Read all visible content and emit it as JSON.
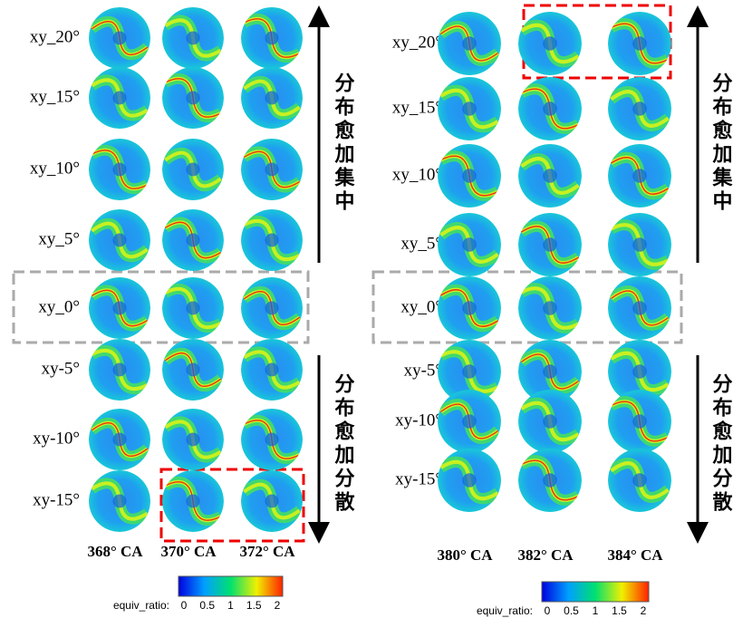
{
  "left_panel": {
    "rows": [
      "xy_20°",
      "xy_15°",
      "xy_10°",
      "xy_5°",
      "xy_0°",
      "xy-5°",
      "xy-10°",
      "xy-15°"
    ],
    "columns": [
      "368° CA",
      "370° CA",
      "372° CA"
    ],
    "arrow_up_label": "分布愈加集中",
    "arrow_down_label": "分布愈加分散",
    "colorbar": {
      "label": "equiv_ratio:",
      "ticks": [
        "0",
        "0.5",
        "1",
        "1.5",
        "2"
      ]
    }
  },
  "right_panel": {
    "rows": [
      "xy_20°",
      "xy_15°",
      "xy_10°",
      "xy_5°",
      "xy_0°",
      "xy-5°",
      "xy-10°",
      "xy-15°"
    ],
    "columns": [
      "380° CA",
      "382° CA",
      "384° CA"
    ],
    "arrow_up_label": "分布愈加集中",
    "arrow_down_label": "分布愈加分散",
    "colorbar": {
      "label": "equiv_ratio:",
      "ticks": [
        "0",
        "0.5",
        "1",
        "1.5",
        "2"
      ]
    }
  }
}
